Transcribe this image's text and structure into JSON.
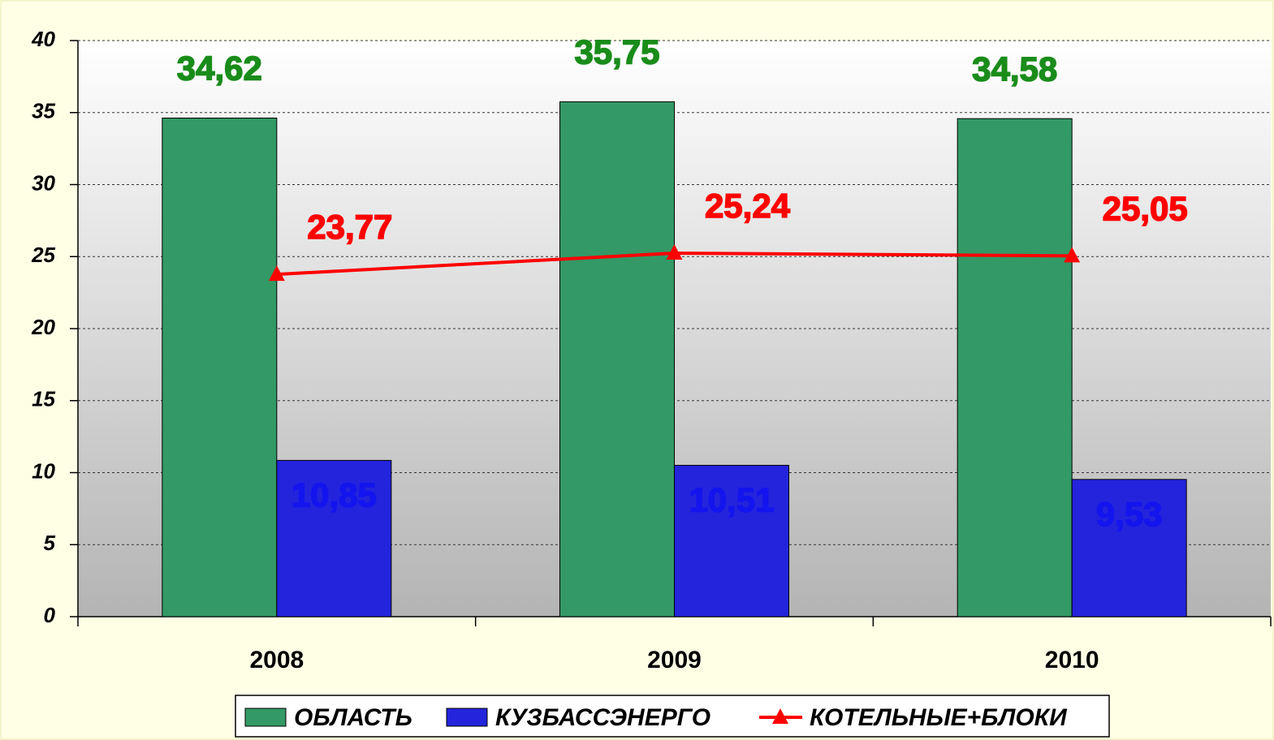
{
  "chart_data": {
    "type": "bar",
    "categories": [
      "2008",
      "2009",
      "2010"
    ],
    "series": [
      {
        "name": "ОБЛАСТЬ",
        "color": "#339966",
        "label_color": "#1a8c1a",
        "values": [
          34.62,
          35.75,
          34.58
        ],
        "value_labels": [
          "34,62",
          "35,75",
          "34,58"
        ]
      },
      {
        "name": "КУЗБАССЭНЕРГО",
        "color": "#2424dd",
        "label_color": "#1414ee",
        "values": [
          10.85,
          10.51,
          9.53
        ],
        "value_labels": [
          "10,85",
          "10,51",
          "9,53"
        ]
      },
      {
        "name": "КОТЕЛЬНЫЕ+БЛОКИ",
        "type": "line",
        "color": "#ff0000",
        "label_color": "#ff0000",
        "values": [
          23.77,
          25.24,
          25.05
        ],
        "value_labels": [
          "23,77",
          "25,24",
          "25,05"
        ]
      }
    ],
    "ylim": [
      0,
      40
    ],
    "yticks": [
      0,
      5,
      10,
      15,
      20,
      25,
      30,
      35,
      40
    ],
    "grid": true
  }
}
